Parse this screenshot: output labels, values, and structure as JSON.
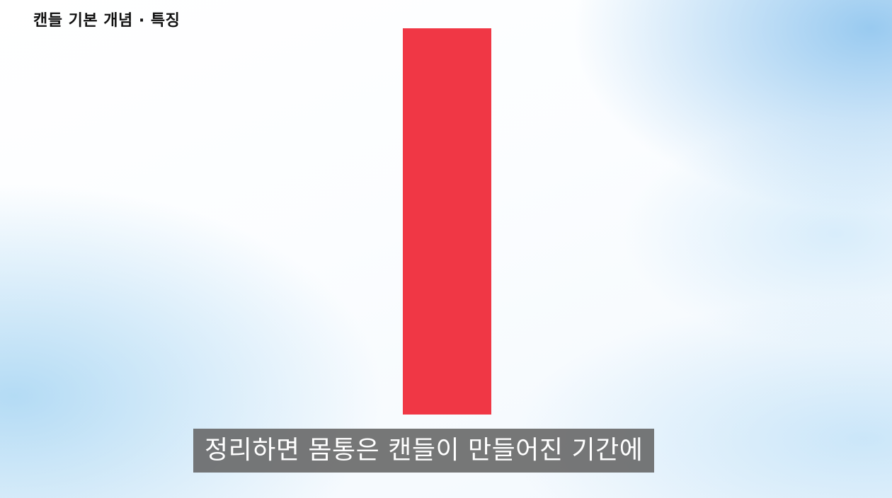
{
  "header": {
    "title": "캔들 기본 개념 · 특징"
  },
  "candle": {
    "color": "#f03745"
  },
  "caption": {
    "text": "정리하면 몸통은 캔들이 만들어진 기간에"
  }
}
